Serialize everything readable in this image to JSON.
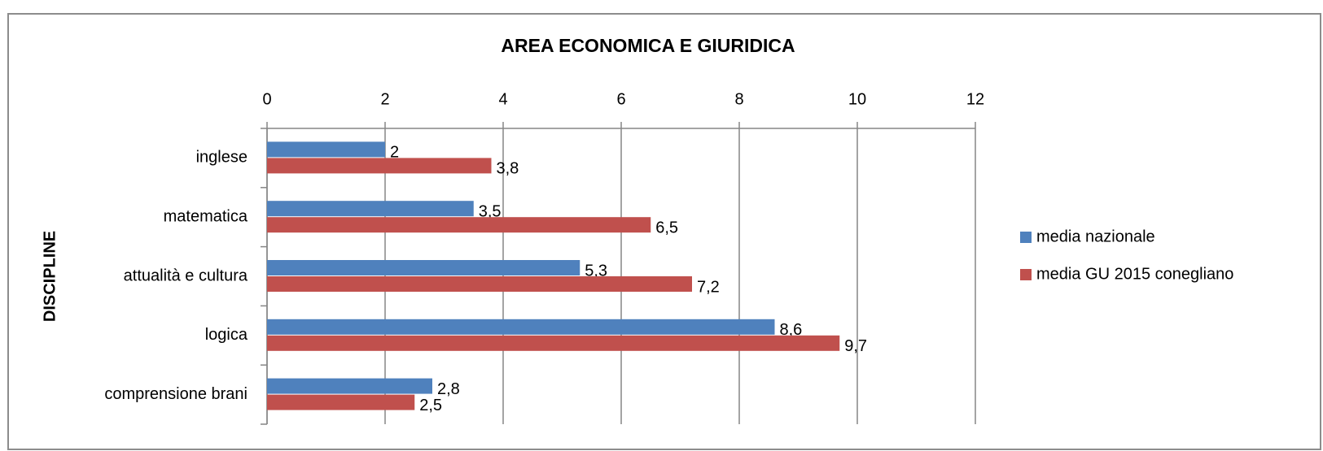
{
  "chart_data": {
    "type": "bar",
    "orientation": "horizontal",
    "title": "AREA ECONOMICA E GIURIDICA",
    "y_label": "DISCIPLINE",
    "categories": [
      "inglese",
      "matematica",
      "attualità e cultura",
      "logica",
      "comprensione brani"
    ],
    "series": [
      {
        "name": "media nazionale",
        "color": "#4f81bd",
        "values": [
          2,
          3.5,
          5.3,
          8.6,
          2.8
        ],
        "value_labels": [
          "2",
          "3,5",
          "5,3",
          "8,6",
          "2,8"
        ]
      },
      {
        "name": "media GU 2015 conegliano",
        "color": "#c0504d",
        "values": [
          3.8,
          6.5,
          7.2,
          9.7,
          2.5
        ],
        "value_labels": [
          "3,8",
          "6,5",
          "7,2",
          "9,7",
          "2,5"
        ]
      }
    ],
    "xlim": [
      0,
      12
    ],
    "xticks": [
      0,
      2,
      4,
      6,
      8,
      10,
      12
    ],
    "grid": true,
    "legend": "right"
  }
}
